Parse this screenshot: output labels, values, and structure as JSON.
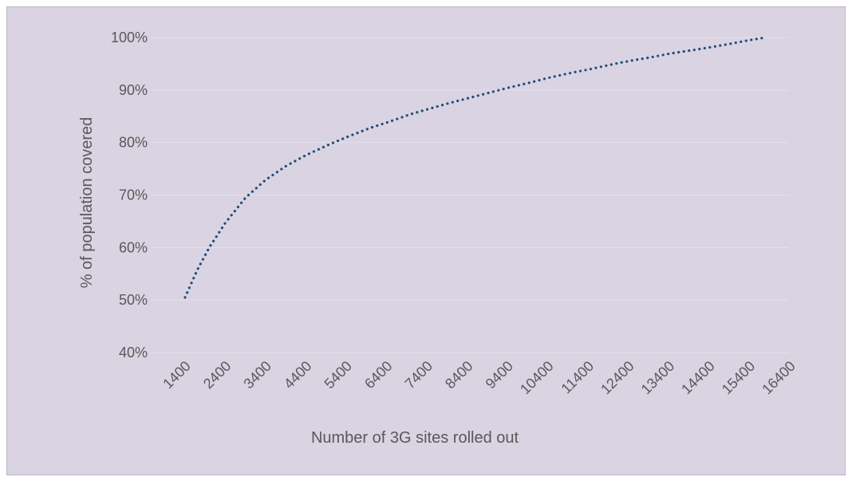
{
  "colors": {
    "plot_background": "#d9d3e2",
    "series_line": "#1f4e79",
    "gridline": "#e6e2ec",
    "text": "#595959"
  },
  "chart_data": {
    "type": "line",
    "title": "",
    "xlabel": "Number of 3G sites rolled out",
    "ylabel": "% of population covered",
    "grid": true,
    "line_style": "dotted",
    "xlim": [
      1400,
      16400
    ],
    "ylim": [
      40,
      100
    ],
    "x_ticks": [
      "1400",
      "2400",
      "3400",
      "4400",
      "5400",
      "6400",
      "7400",
      "8400",
      "9400",
      "10400",
      "11400",
      "12400",
      "13400",
      "14400",
      "15400",
      "16400"
    ],
    "y_ticks": [
      "40%",
      "50%",
      "60%",
      "70%",
      "80%",
      "90%",
      "100%"
    ],
    "y_tick_values": [
      40,
      50,
      60,
      70,
      80,
      90,
      100
    ],
    "series": [
      {
        "x": [
          1400,
          1700,
          2000,
          2400,
          2900,
          3400,
          3900,
          4400,
          5000,
          5400,
          6000,
          6400,
          7000,
          7400,
          8000,
          8400,
          9000,
          9400,
          10000,
          10400,
          11000,
          11400,
          12000,
          12400,
          13000,
          13400,
          14000,
          14400,
          15000,
          15400,
          15800
        ],
        "y": [
          50.5,
          55.7,
          60.0,
          64.7,
          69.5,
          72.9,
          75.5,
          77.6,
          79.7,
          81.0,
          82.8,
          83.8,
          85.4,
          86.3,
          87.6,
          88.4,
          89.6,
          90.4,
          91.5,
          92.3,
          93.3,
          93.9,
          94.9,
          95.5,
          96.3,
          96.9,
          97.6,
          98.1,
          98.9,
          99.5,
          100.0
        ]
      }
    ]
  }
}
